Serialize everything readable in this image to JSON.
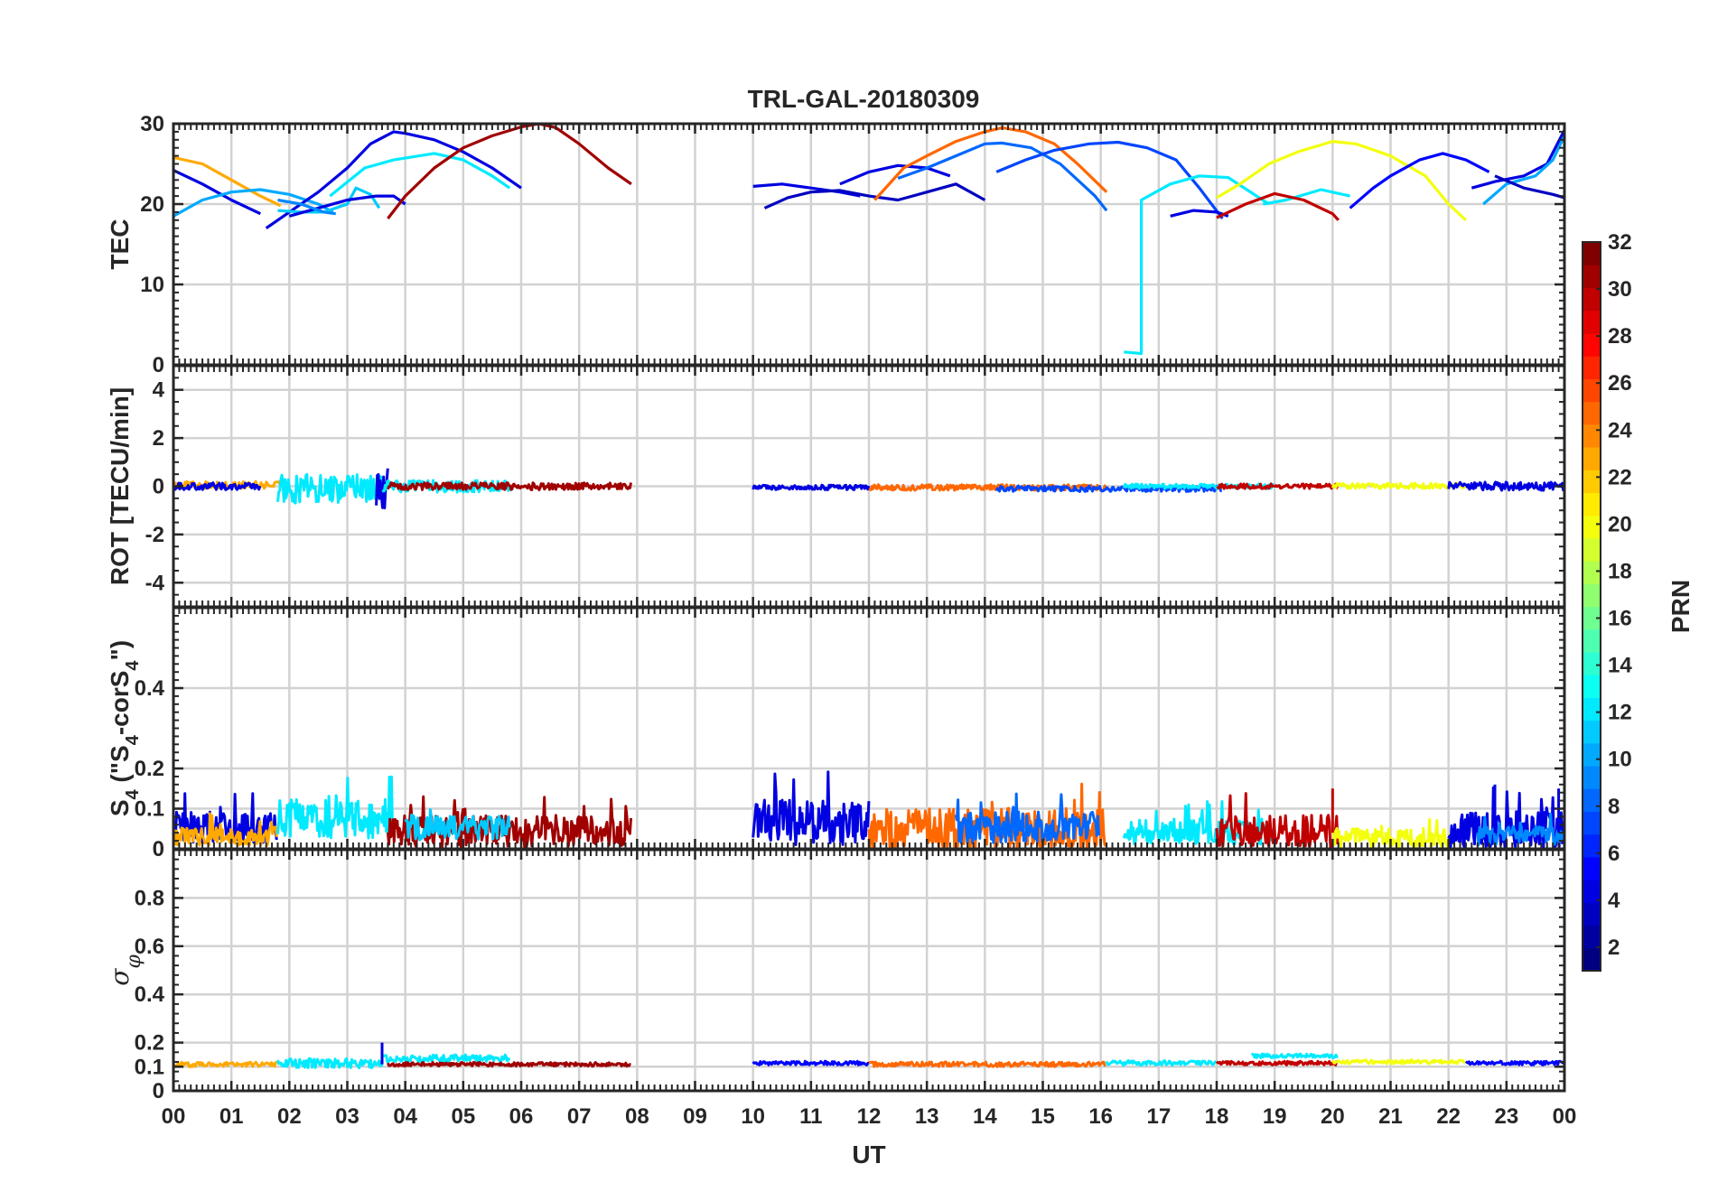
{
  "figure_title": "TRL-GAL-20180309",
  "x_axis": {
    "label": "UT",
    "ticks": [
      0,
      1,
      2,
      3,
      4,
      5,
      6,
      7,
      8,
      9,
      10,
      11,
      12,
      13,
      14,
      15,
      16,
      17,
      18,
      19,
      20,
      21,
      22,
      23,
      24
    ],
    "tick_labels": [
      "00",
      "01",
      "02",
      "03",
      "04",
      "05",
      "06",
      "07",
      "08",
      "09",
      "10",
      "11",
      "12",
      "13",
      "14",
      "15",
      "16",
      "17",
      "18",
      "19",
      "20",
      "21",
      "22",
      "23",
      "00"
    ],
    "range": [
      0,
      24
    ]
  },
  "colorbar": {
    "label": "PRN",
    "range": [
      1,
      32
    ],
    "tick_labels": [
      "2",
      "4",
      "6",
      "8",
      "10",
      "12",
      "14",
      "16",
      "18",
      "20",
      "22",
      "24",
      "26",
      "28",
      "30",
      "32"
    ],
    "colormap": "jet",
    "levels": 32
  },
  "chart_data": [
    {
      "id": "tec",
      "type": "line",
      "ylabel": "TEC",
      "ylim": [
        0,
        30
      ],
      "ytick_labels": [
        "0",
        "10",
        "20",
        "30"
      ],
      "grid": true,
      "series": [
        {
          "prn": 23,
          "x": [
            0,
            0.5,
            1,
            1.5,
            1.85
          ],
          "y": [
            25.8,
            25,
            23,
            21,
            19.8
          ]
        },
        {
          "prn": 4,
          "x": [
            0,
            0.5,
            1,
            1.5
          ],
          "y": [
            24.2,
            22.5,
            20.5,
            18.8
          ]
        },
        {
          "prn": 10,
          "x": [
            0,
            0.5,
            1,
            1.5,
            2,
            2.5,
            2.75
          ],
          "y": [
            18.5,
            20.5,
            21.5,
            21.8,
            21.2,
            20,
            19
          ]
        },
        {
          "prn": 4,
          "x": [
            1.6,
            2,
            2.5,
            3,
            3.4,
            3.8,
            4,
            4.5,
            5,
            5.5,
            6
          ],
          "y": [
            17,
            19,
            21.5,
            24.5,
            27.5,
            29,
            28.8,
            28,
            26.5,
            24.5,
            22
          ]
        },
        {
          "prn": 11,
          "x": [
            1.8,
            2.2,
            2.6,
            3,
            3.15,
            3.4,
            3.55
          ],
          "y": [
            19.2,
            19,
            19,
            20,
            22,
            21.2,
            19.5
          ]
        },
        {
          "prn": 4,
          "x": [
            2,
            2.5,
            3,
            3.5,
            3.8,
            4
          ],
          "y": [
            18.5,
            19.5,
            20.5,
            21,
            21,
            20
          ]
        },
        {
          "prn": 9,
          "x": [
            1.8,
            2.2,
            2.6,
            2.8
          ],
          "y": [
            20.5,
            20,
            19,
            18.8
          ]
        },
        {
          "prn": 12,
          "x": [
            2.7,
            3.3,
            3.8,
            4.5,
            5,
            5.5,
            5.8
          ],
          "y": [
            21,
            24.5,
            25.5,
            26.3,
            25.5,
            23.5,
            22
          ]
        },
        {
          "prn": 31,
          "x": [
            3.7,
            4,
            4.5,
            5,
            5.5,
            6,
            6.3,
            6.6,
            7,
            7.5,
            7.9
          ],
          "y": [
            18.2,
            21,
            24.5,
            27,
            28.5,
            29.6,
            30,
            29.5,
            27.5,
            24.5,
            22.5
          ]
        },
        {
          "prn": 4,
          "x": [
            10,
            10.5,
            11,
            11.5,
            11.85
          ],
          "y": [
            22.2,
            22.5,
            22,
            21.5,
            21
          ]
        },
        {
          "prn": 3,
          "x": [
            10.2,
            10.6,
            11,
            11.5,
            12,
            12.5,
            13,
            13.5,
            14
          ],
          "y": [
            19.5,
            20.8,
            21.5,
            21.7,
            21,
            20.5,
            21.5,
            22.5,
            20.5
          ]
        },
        {
          "prn": 4,
          "x": [
            11.5,
            12,
            12.5,
            13,
            13.4
          ],
          "y": [
            22.5,
            24,
            24.8,
            24.5,
            23.5
          ]
        },
        {
          "prn": 25,
          "x": [
            12.1,
            12.6,
            13,
            13.5,
            14,
            14.3,
            14.7,
            15.2,
            15.6,
            16.1
          ],
          "y": [
            20.5,
            24.5,
            26,
            27.8,
            29,
            29.5,
            29,
            27.5,
            25,
            21.5
          ]
        },
        {
          "prn": 8,
          "x": [
            12.5,
            13,
            13.5,
            14,
            14.3,
            14.8,
            15.3,
            15.9,
            16.1
          ],
          "y": [
            23.2,
            24.5,
            26,
            27.5,
            27.6,
            27,
            25,
            21,
            19.2
          ]
        },
        {
          "prn": 7,
          "x": [
            14.2,
            14.7,
            15.2,
            15.8,
            16.3,
            16.8,
            17.3,
            17.7,
            18.1
          ],
          "y": [
            24,
            25.5,
            26.7,
            27.5,
            27.7,
            27,
            25.5,
            22,
            18.2
          ]
        },
        {
          "prn": 12,
          "x": [
            16.4,
            16.7,
            16.7,
            16.7,
            17.2,
            17.7,
            18.2,
            18.9
          ],
          "y": [
            1.6,
            1.4,
            15,
            20.5,
            22.5,
            23.5,
            23.3,
            20
          ]
        },
        {
          "prn": 4,
          "x": [
            17.2,
            17.6,
            18,
            18.2
          ],
          "y": [
            18.5,
            19.2,
            19,
            18.5
          ]
        },
        {
          "prn": 20,
          "x": [
            18,
            18.4,
            18.9,
            19.4,
            20,
            20.4,
            21,
            21.6,
            22,
            22.3
          ],
          "y": [
            20.8,
            22.5,
            25,
            26.5,
            27.8,
            27.5,
            26,
            23.5,
            20,
            18
          ]
        },
        {
          "prn": 12,
          "x": [
            18.8,
            19.2,
            19.8,
            20.3
          ],
          "y": [
            20,
            20.5,
            21.8,
            21
          ]
        },
        {
          "prn": 30,
          "x": [
            18,
            18.5,
            19,
            19.5,
            20,
            20.1
          ],
          "y": [
            18.3,
            20,
            21.3,
            20.5,
            18.8,
            18
          ]
        },
        {
          "prn": 5,
          "x": [
            20.3,
            20.7,
            21,
            21.5,
            21.9,
            22.3,
            22.7
          ],
          "y": [
            19.5,
            22,
            23.5,
            25.5,
            26.3,
            25.5,
            24
          ]
        },
        {
          "prn": 4,
          "x": [
            22.4,
            22.8,
            23.3,
            23.7,
            24
          ],
          "y": [
            22,
            22.8,
            23.5,
            25,
            29.2
          ]
        },
        {
          "prn": 10,
          "x": [
            22.6,
            23,
            23.5,
            23.8,
            24
          ],
          "y": [
            20,
            22.5,
            23.5,
            25.5,
            28.5
          ]
        },
        {
          "prn": 3,
          "x": [
            22.8,
            23.3,
            23.8,
            24
          ],
          "y": [
            23.5,
            22,
            21.2,
            20.8
          ]
        }
      ]
    },
    {
      "id": "rot",
      "type": "line",
      "ylabel": "ROT [TECU/min]",
      "ylim": [
        -5,
        5
      ],
      "ytick_labels": [
        "-4",
        "-2",
        "0",
        "2",
        "4"
      ],
      "grid": true,
      "series": [
        {
          "prn": 23,
          "x_range": [
            0,
            1.85
          ],
          "base": 0.05,
          "amp": 0.15
        },
        {
          "prn": 4,
          "x_range": [
            0,
            1.5
          ],
          "base": 0.0,
          "amp": 0.15
        },
        {
          "prn": 12,
          "x_range": [
            1.8,
            3.6
          ],
          "base": -0.1,
          "amp": 0.6
        },
        {
          "prn": 4,
          "x_range": [
            3.5,
            3.7
          ],
          "base": 0.0,
          "amp": 0.9
        },
        {
          "prn": 12,
          "x_range": [
            3.6,
            5.8
          ],
          "base": 0.0,
          "amp": 0.25
        },
        {
          "prn": 31,
          "x_range": [
            3.7,
            7.9
          ],
          "base": 0.0,
          "amp": 0.15
        },
        {
          "prn": 4,
          "x_range": [
            10,
            12
          ],
          "base": -0.05,
          "amp": 0.1
        },
        {
          "prn": 25,
          "x_range": [
            12,
            16.1
          ],
          "base": -0.05,
          "amp": 0.12
        },
        {
          "prn": 7,
          "x_range": [
            14.2,
            18.1
          ],
          "base": -0.1,
          "amp": 0.12
        },
        {
          "prn": 12,
          "x_range": [
            16.4,
            19
          ],
          "base": 0.0,
          "amp": 0.1
        },
        {
          "prn": 30,
          "x_range": [
            18,
            20.1
          ],
          "base": 0.0,
          "amp": 0.1
        },
        {
          "prn": 20,
          "x_range": [
            20,
            22.3
          ],
          "base": 0.02,
          "amp": 0.12
        },
        {
          "prn": 4,
          "x_range": [
            22,
            24
          ],
          "base": 0.0,
          "amp": 0.18
        }
      ]
    },
    {
      "id": "s4",
      "type": "line",
      "ylabel": "S4 (\"S4-corS4\")",
      "ylim": [
        0,
        0.6
      ],
      "ytick_labels": [
        "0",
        "0.1",
        "0.2",
        "0.4"
      ],
      "grid": true,
      "series": [
        {
          "prn": 4,
          "x_range": [
            0,
            1.8
          ],
          "base": 0.05,
          "amp": 0.05
        },
        {
          "prn": 23,
          "x_range": [
            0,
            1.8
          ],
          "base": 0.03,
          "amp": 0.03
        },
        {
          "prn": 12,
          "x_range": [
            1.8,
            3.8
          ],
          "base": 0.07,
          "amp": 0.06
        },
        {
          "prn": 31,
          "x_range": [
            3.7,
            7.9
          ],
          "base": 0.04,
          "amp": 0.05
        },
        {
          "prn": 11,
          "x_range": [
            4,
            5.8
          ],
          "base": 0.05,
          "amp": 0.04
        },
        {
          "prn": 4,
          "x_range": [
            10,
            12
          ],
          "base": 0.06,
          "amp": 0.07
        },
        {
          "prn": 25,
          "x_range": [
            12,
            16.1
          ],
          "base": 0.04,
          "amp": 0.07
        },
        {
          "prn": 8,
          "x_range": [
            13.5,
            16
          ],
          "base": 0.05,
          "amp": 0.05
        },
        {
          "prn": 12,
          "x_range": [
            16.4,
            19
          ],
          "base": 0.04,
          "amp": 0.04
        },
        {
          "prn": 30,
          "x_range": [
            18,
            20.1
          ],
          "base": 0.04,
          "amp": 0.05
        },
        {
          "prn": 20,
          "x_range": [
            20,
            22.3
          ],
          "base": 0.025,
          "amp": 0.03
        },
        {
          "prn": 4,
          "x_range": [
            22,
            24
          ],
          "base": 0.04,
          "amp": 0.06
        },
        {
          "prn": 9,
          "x_range": [
            22.5,
            24
          ],
          "base": 0.03,
          "amp": 0.03
        }
      ],
      "peaks": [
        {
          "prn": 30,
          "x": 20.0,
          "y": 0.15
        },
        {
          "prn": 4,
          "x": 22.8,
          "y": 0.16
        },
        {
          "prn": 4,
          "x": 23.9,
          "y": 0.15
        }
      ]
    },
    {
      "id": "sigma_phi",
      "type": "line",
      "ylabel": "σφ",
      "ylim": [
        0,
        1
      ],
      "ytick_labels": [
        "0",
        "0.1",
        "0.2",
        "0.4",
        "0.6",
        "0.8"
      ],
      "grid": true,
      "series": [
        {
          "prn": 23,
          "x_range": [
            0,
            1.8
          ],
          "base": 0.11,
          "amp": 0.01
        },
        {
          "prn": 12,
          "x_range": [
            1.8,
            3.6
          ],
          "base": 0.115,
          "amp": 0.02
        },
        {
          "prn": 12,
          "x_range": [
            3.6,
            5.8
          ],
          "base": 0.135,
          "amp": 0.015
        },
        {
          "prn": 31,
          "x_range": [
            3.7,
            7.9
          ],
          "base": 0.11,
          "amp": 0.008
        },
        {
          "prn": 5,
          "x_range": [
            10,
            12
          ],
          "base": 0.115,
          "amp": 0.008
        },
        {
          "prn": 25,
          "x_range": [
            12,
            16.1
          ],
          "base": 0.11,
          "amp": 0.01
        },
        {
          "prn": 12,
          "x_range": [
            16.1,
            18
          ],
          "base": 0.115,
          "amp": 0.01
        },
        {
          "prn": 30,
          "x_range": [
            18,
            20.1
          ],
          "base": 0.115,
          "amp": 0.008
        },
        {
          "prn": 12,
          "x_range": [
            18.6,
            20.1
          ],
          "base": 0.145,
          "amp": 0.008
        },
        {
          "prn": 20,
          "x_range": [
            20,
            22.3
          ],
          "base": 0.12,
          "amp": 0.008
        },
        {
          "prn": 5,
          "x_range": [
            22.3,
            24
          ],
          "base": 0.115,
          "amp": 0.008
        }
      ],
      "peaks": [
        {
          "prn": 4,
          "x": 3.6,
          "y": 0.2
        }
      ]
    }
  ]
}
